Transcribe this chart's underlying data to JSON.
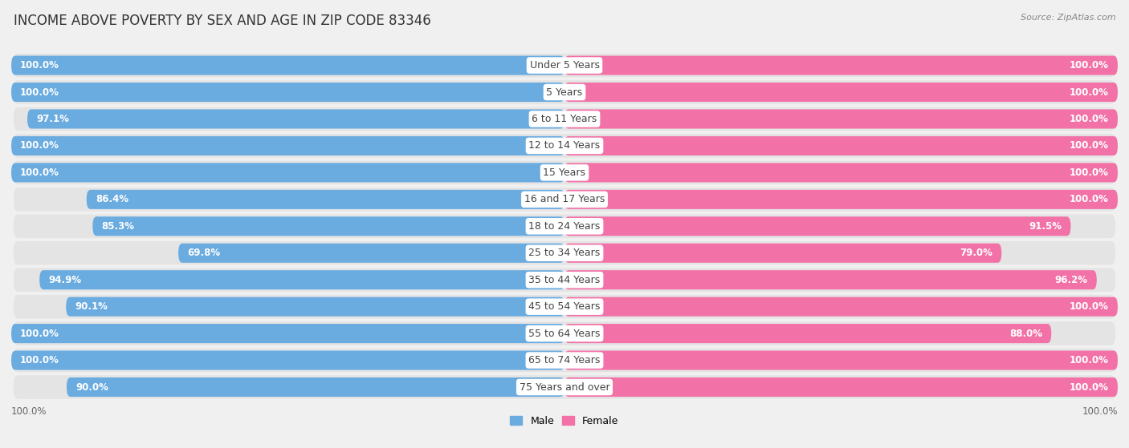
{
  "title": "INCOME ABOVE POVERTY BY SEX AND AGE IN ZIP CODE 83346",
  "source": "Source: ZipAtlas.com",
  "categories": [
    "Under 5 Years",
    "5 Years",
    "6 to 11 Years",
    "12 to 14 Years",
    "15 Years",
    "16 and 17 Years",
    "18 to 24 Years",
    "25 to 34 Years",
    "35 to 44 Years",
    "45 to 54 Years",
    "55 to 64 Years",
    "65 to 74 Years",
    "75 Years and over"
  ],
  "male": [
    100.0,
    100.0,
    97.1,
    100.0,
    100.0,
    86.4,
    85.3,
    69.8,
    94.9,
    90.1,
    100.0,
    100.0,
    90.0
  ],
  "female": [
    100.0,
    100.0,
    100.0,
    100.0,
    100.0,
    100.0,
    91.5,
    79.0,
    96.2,
    100.0,
    88.0,
    100.0,
    100.0
  ],
  "male_color": "#6aabe0",
  "female_color": "#f272a8",
  "background_color": "#f0f0f0",
  "row_bg_color": "#e4e4e4",
  "title_fontsize": 12,
  "label_fontsize": 9,
  "value_fontsize": 8.5,
  "x_axis_label": "100.0%"
}
